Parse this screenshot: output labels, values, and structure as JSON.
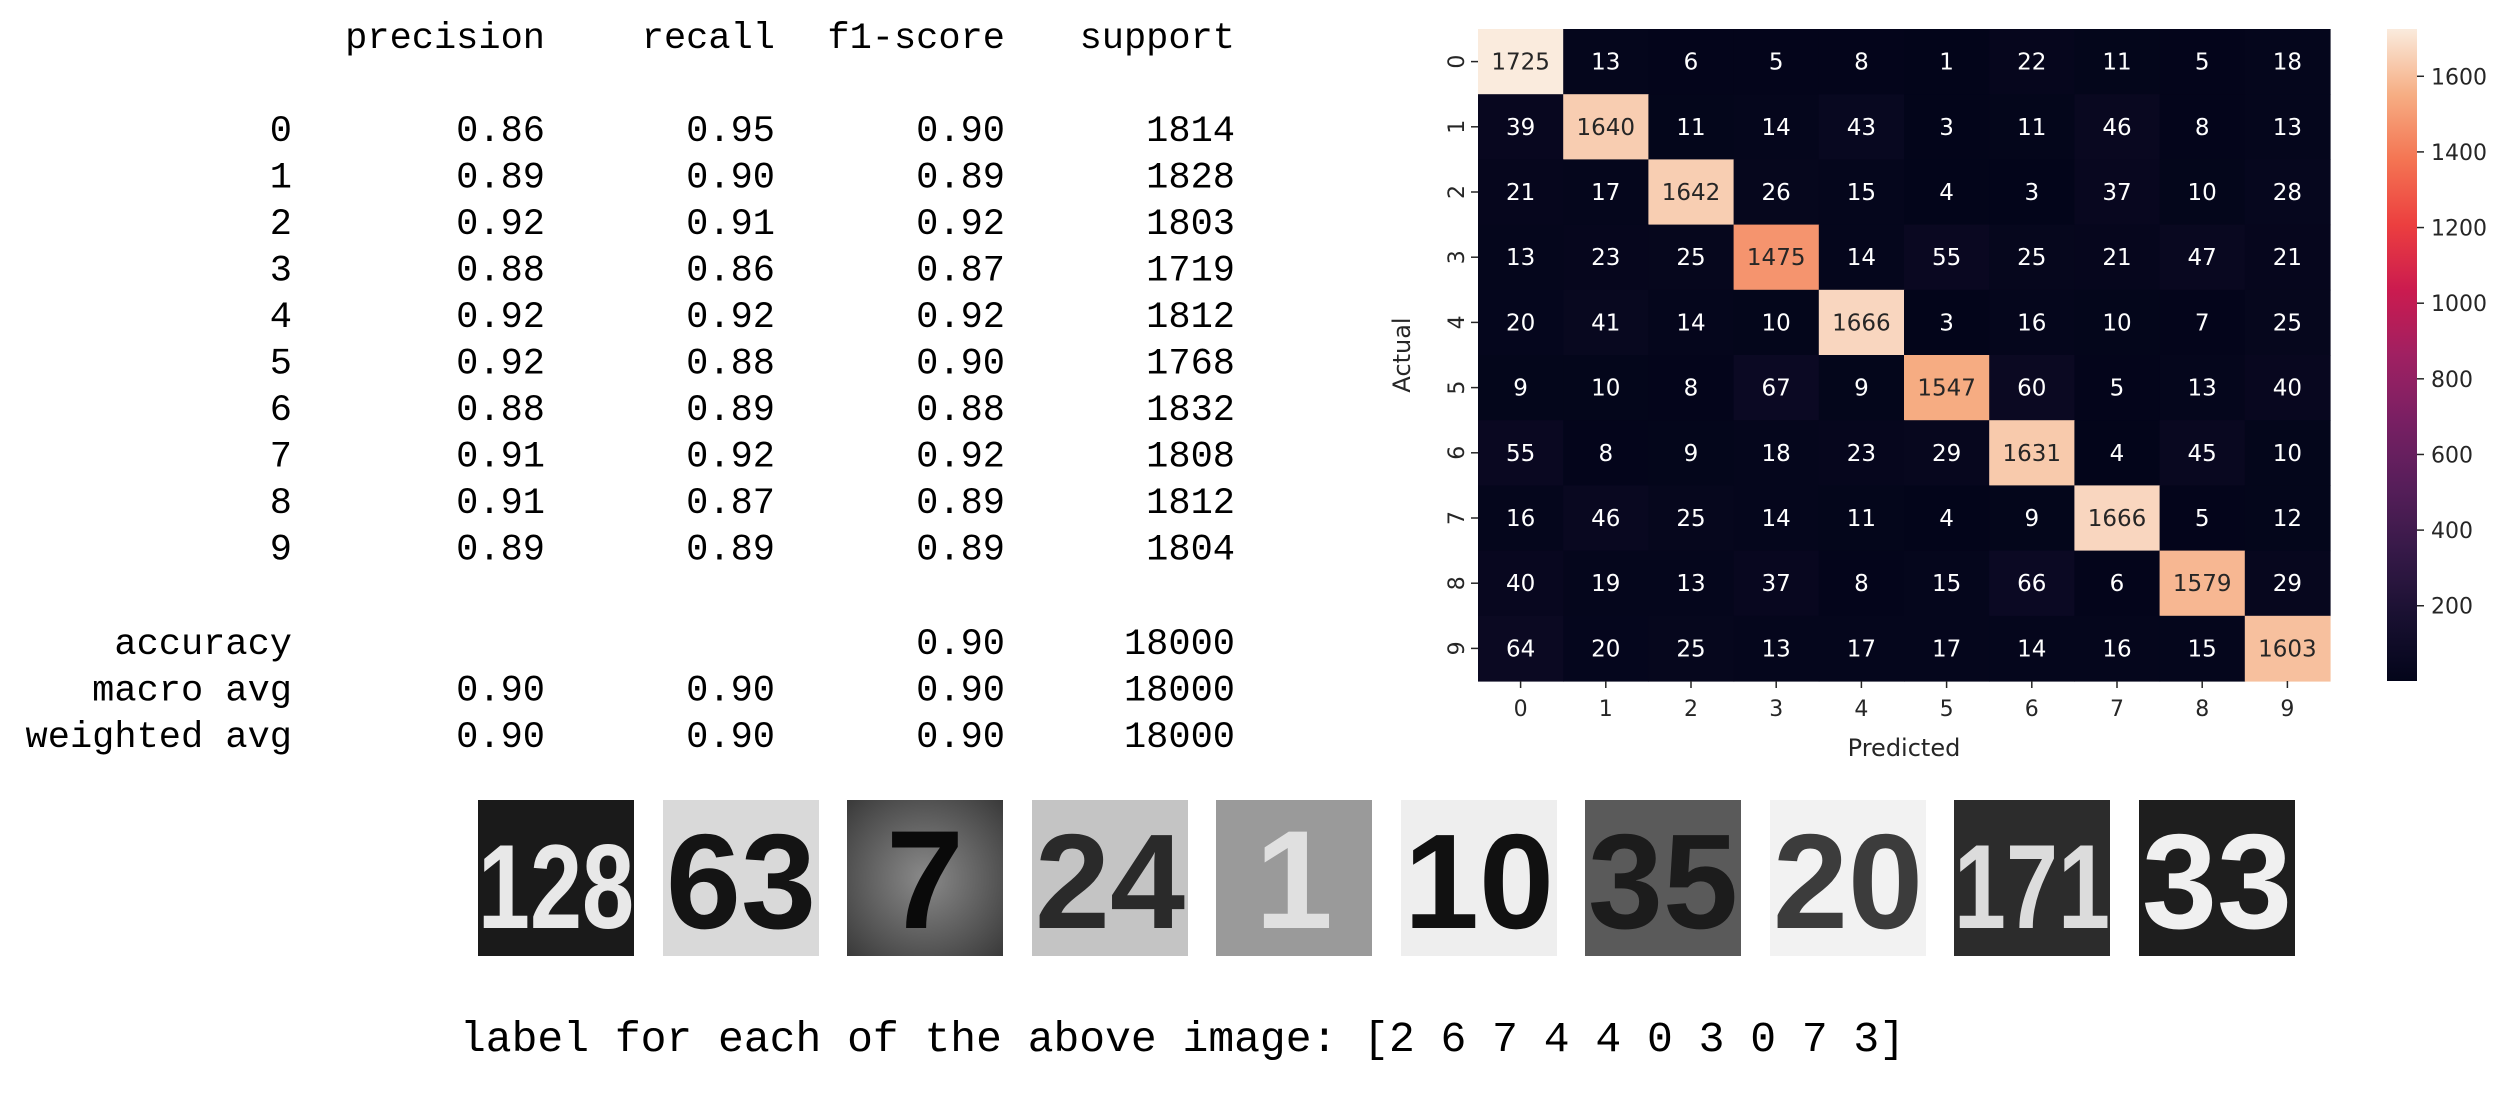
{
  "chart_data": [
    {
      "type": "table",
      "columns": [
        "precision",
        "recall",
        "f1-score",
        "support"
      ],
      "rows": [
        {
          "label": "0",
          "values": [
            "0.86",
            "0.95",
            "0.90",
            "1814"
          ]
        },
        {
          "label": "1",
          "values": [
            "0.89",
            "0.90",
            "0.89",
            "1828"
          ]
        },
        {
          "label": "2",
          "values": [
            "0.92",
            "0.91",
            "0.92",
            "1803"
          ]
        },
        {
          "label": "3",
          "values": [
            "0.88",
            "0.86",
            "0.87",
            "1719"
          ]
        },
        {
          "label": "4",
          "values": [
            "0.92",
            "0.92",
            "0.92",
            "1812"
          ]
        },
        {
          "label": "5",
          "values": [
            "0.92",
            "0.88",
            "0.90",
            "1768"
          ]
        },
        {
          "label": "6",
          "values": [
            "0.88",
            "0.89",
            "0.88",
            "1832"
          ]
        },
        {
          "label": "7",
          "values": [
            "0.91",
            "0.92",
            "0.92",
            "1808"
          ]
        },
        {
          "label": "8",
          "values": [
            "0.91",
            "0.87",
            "0.89",
            "1812"
          ]
        },
        {
          "label": "9",
          "values": [
            "0.89",
            "0.89",
            "0.89",
            "1804"
          ]
        }
      ],
      "summary": [
        {
          "label": "accuracy",
          "values": [
            "",
            "",
            "0.90",
            "18000"
          ]
        },
        {
          "label": "macro avg",
          "values": [
            "0.90",
            "0.90",
            "0.90",
            "18000"
          ]
        },
        {
          "label": "weighted avg",
          "values": [
            "0.90",
            "0.90",
            "0.90",
            "18000"
          ]
        }
      ]
    },
    {
      "type": "heatmap",
      "xlabel": "Predicted",
      "ylabel": "Actual",
      "x_categories": [
        "0",
        "1",
        "2",
        "3",
        "4",
        "5",
        "6",
        "7",
        "8",
        "9"
      ],
      "y_categories": [
        "0",
        "1",
        "2",
        "3",
        "4",
        "5",
        "6",
        "7",
        "8",
        "9"
      ],
      "matrix": [
        [
          1725,
          13,
          6,
          5,
          8,
          1,
          22,
          11,
          5,
          18
        ],
        [
          39,
          1640,
          11,
          14,
          43,
          3,
          11,
          46,
          8,
          13
        ],
        [
          21,
          17,
          1642,
          26,
          15,
          4,
          3,
          37,
          10,
          28
        ],
        [
          13,
          23,
          25,
          1475,
          14,
          55,
          25,
          21,
          47,
          21
        ],
        [
          20,
          41,
          14,
          10,
          1666,
          3,
          16,
          10,
          7,
          25
        ],
        [
          9,
          10,
          8,
          67,
          9,
          1547,
          60,
          5,
          13,
          40
        ],
        [
          55,
          8,
          9,
          18,
          23,
          29,
          1631,
          4,
          45,
          10
        ],
        [
          16,
          46,
          25,
          14,
          11,
          4,
          9,
          1666,
          5,
          12
        ],
        [
          40,
          19,
          13,
          37,
          8,
          15,
          66,
          6,
          1579,
          29
        ],
        [
          64,
          20,
          25,
          13,
          17,
          17,
          14,
          16,
          15,
          1603
        ]
      ],
      "colorbar": {
        "range": [
          1,
          1725
        ],
        "ticks": [
          200,
          400,
          600,
          800,
          1000,
          1200,
          1400,
          1600
        ],
        "colormap": "rocket"
      }
    }
  ],
  "sample_images": {
    "digits": [
      "128",
      "63",
      "7",
      "24",
      "1",
      "10",
      "35",
      "20",
      "171",
      "33"
    ],
    "caption": "label for each of the above image: [2 6 7 4 4 0 3 0 7 3]"
  }
}
